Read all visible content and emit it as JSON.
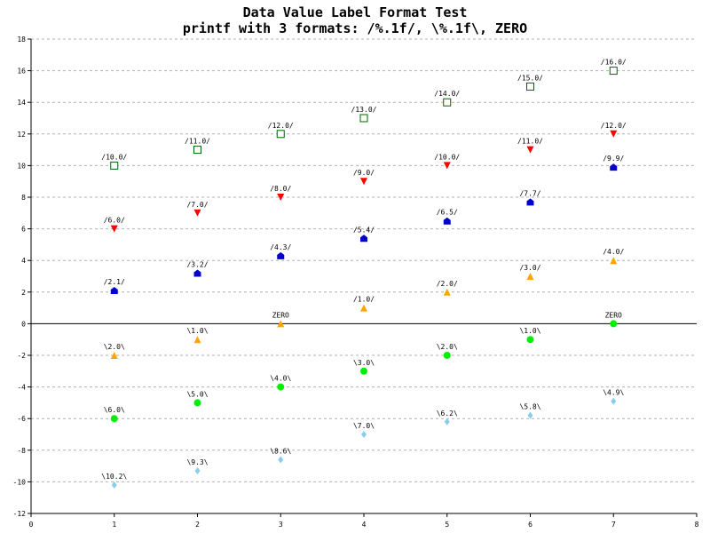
{
  "chart_data": {
    "type": "scatter",
    "title": "Data Value Label Format Test",
    "subtitle": "printf with 3 formats: /%.1f/, \\%.1f\\, ZERO",
    "xlabel": "",
    "ylabel": "",
    "xlim": [
      0,
      8
    ],
    "ylim": [
      -12,
      18
    ],
    "xticks": [
      0,
      1,
      2,
      3,
      4,
      5,
      6,
      7,
      8
    ],
    "yticks": [
      -12,
      -10,
      -8,
      -6,
      -4,
      -2,
      0,
      2,
      4,
      6,
      8,
      10,
      12,
      14,
      16,
      18
    ],
    "grid": "horizontal dashed",
    "zero_line": true,
    "series": [
      {
        "marker": "square-open",
        "color": "#006400",
        "x": [
          1,
          2,
          3,
          4,
          5,
          6,
          7
        ],
        "values": [
          10,
          11,
          12,
          13,
          14,
          15,
          16
        ],
        "labels": [
          "/10.0/",
          "/11.0/",
          "/12.0/",
          "/13.0/",
          "/14.0/",
          "/15.0/",
          "/16.0/"
        ]
      },
      {
        "marker": "triangle-down",
        "color": "#ff0000",
        "x": [
          1,
          2,
          3,
          4,
          5,
          6,
          7
        ],
        "values": [
          6,
          7,
          8,
          9,
          10,
          11,
          12
        ],
        "labels": [
          "/6.0/",
          "/7.0/",
          "/8.0/",
          "/9.0/",
          "/10.0/",
          "/11.0/",
          "/12.0/"
        ]
      },
      {
        "marker": "pentagon",
        "color": "#0000cc",
        "x": [
          1,
          2,
          3,
          4,
          5,
          6,
          7
        ],
        "values": [
          2.1,
          3.2,
          4.3,
          5.4,
          6.5,
          7.7,
          9.9
        ],
        "labels": [
          "/2.1/",
          "/3.2/",
          "/4.3/",
          "/5.4/",
          "/6.5/",
          "/7.7/",
          "/9.9/"
        ]
      },
      {
        "marker": "triangle-up",
        "color": "#ffa500",
        "x": [
          1,
          2,
          3,
          4,
          5,
          6,
          7
        ],
        "values": [
          -2,
          -1,
          0,
          1,
          2,
          3,
          4
        ],
        "labels": [
          "\\2.0\\",
          "\\1.0\\",
          "ZERO",
          "/1.0/",
          "/2.0/",
          "/3.0/",
          "/4.0/"
        ]
      },
      {
        "marker": "circle",
        "color": "#00ee00",
        "x": [
          1,
          2,
          3,
          4,
          5,
          6,
          7
        ],
        "values": [
          -6,
          -5,
          -4,
          -3,
          -2,
          -1,
          0
        ],
        "labels": [
          "\\6.0\\",
          "\\5.0\\",
          "\\4.0\\",
          "\\3.0\\",
          "\\2.0\\",
          "\\1.0\\",
          "ZERO"
        ]
      },
      {
        "marker": "diamond",
        "color": "#87ceeb",
        "x": [
          1,
          2,
          3,
          4,
          5,
          6,
          7
        ],
        "values": [
          -10.2,
          -9.3,
          -8.6,
          -7.0,
          -6.2,
          -5.8,
          -4.9
        ],
        "labels": [
          "\\10.2\\",
          "\\9.3\\",
          "\\8.6\\",
          "\\7.0\\",
          "\\6.2\\",
          "\\5.8\\",
          "\\4.9\\"
        ]
      }
    ]
  }
}
